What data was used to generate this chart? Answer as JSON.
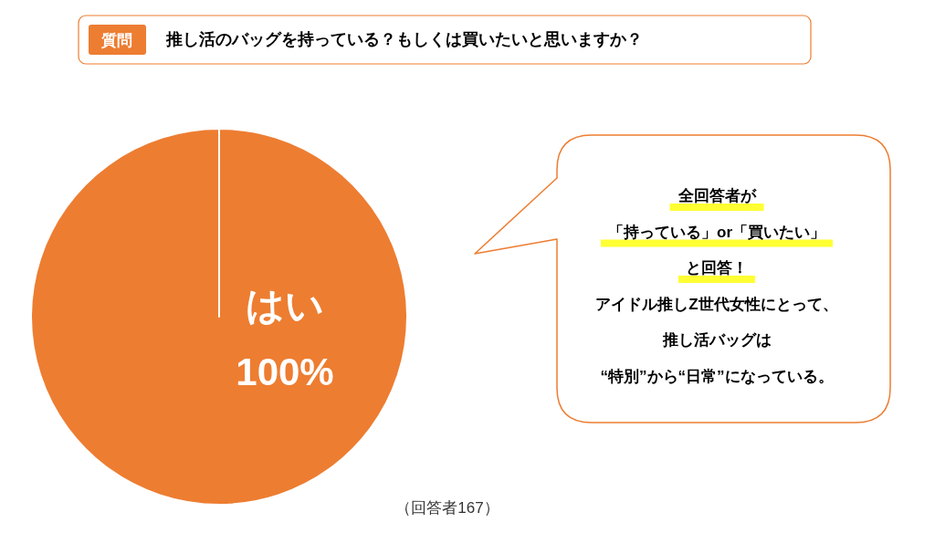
{
  "chart_data": {
    "type": "pie",
    "title": "推し活のバッグを持っている？もしくは買いたいと思いますか？",
    "categories": [
      "はい"
    ],
    "values": [
      100
    ],
    "colors": [
      "#ed7d31"
    ],
    "value_labels": [
      "100%"
    ],
    "annotations": [
      "質問",
      "全回答者が",
      "「持っている」or「買いたい」",
      "と回答！",
      "アイドル推しZ世代女性にとって、",
      "推し活バッグは",
      "“特別”から“日常”になっている。",
      "（回答者167）"
    ]
  }
}
